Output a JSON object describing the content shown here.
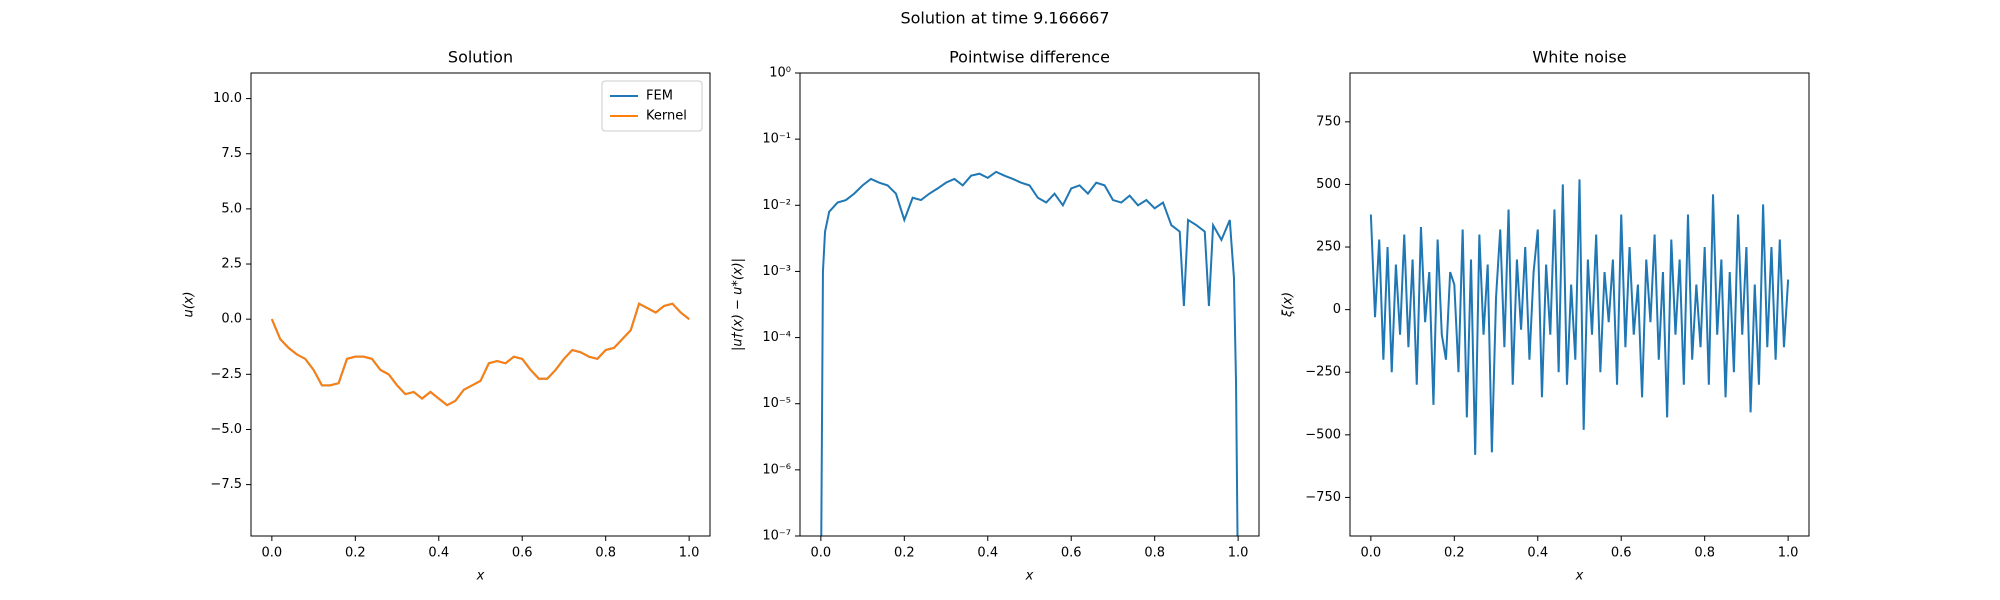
{
  "figure_title": "Solution at time 9.166667",
  "chart_data": [
    {
      "type": "line",
      "title": "Solution",
      "xlabel": "x",
      "ylabel": "u(x)",
      "legend": "upper right",
      "x": [
        0,
        0.02,
        0.04,
        0.06,
        0.08,
        0.1,
        0.12,
        0.14,
        0.16,
        0.18,
        0.2,
        0.22,
        0.24,
        0.26,
        0.28,
        0.3,
        0.32,
        0.34,
        0.36,
        0.38,
        0.4,
        0.42,
        0.44,
        0.46,
        0.48,
        0.5,
        0.52,
        0.54,
        0.56,
        0.58,
        0.6,
        0.62,
        0.64,
        0.66,
        0.68,
        0.7,
        0.72,
        0.74,
        0.76,
        0.78,
        0.8,
        0.82,
        0.84,
        0.86,
        0.88,
        0.9,
        0.92,
        0.94,
        0.96,
        0.98,
        1.0
      ],
      "series": [
        {
          "name": "FEM",
          "color": "#1f77b4",
          "values": [
            0,
            -0.9,
            -1.3,
            -1.6,
            -1.8,
            -2.3,
            -3.0,
            -3.0,
            -2.9,
            -1.8,
            -1.7,
            -1.7,
            -1.8,
            -2.3,
            -2.5,
            -3.0,
            -3.4,
            -3.3,
            -3.6,
            -3.3,
            -3.6,
            -3.9,
            -3.7,
            -3.2,
            -3.0,
            -2.8,
            -2.0,
            -1.9,
            -2.0,
            -1.7,
            -1.8,
            -2.3,
            -2.7,
            -2.7,
            -2.3,
            -1.8,
            -1.4,
            -1.5,
            -1.7,
            -1.8,
            -1.4,
            -1.3,
            -0.9,
            -0.5,
            0.7,
            0.5,
            0.3,
            0.6,
            0.7,
            0.3,
            0
          ]
        },
        {
          "name": "Kernel",
          "color": "#ff7f0e",
          "values": [
            0,
            -0.9,
            -1.3,
            -1.6,
            -1.8,
            -2.3,
            -3.0,
            -3.0,
            -2.9,
            -1.8,
            -1.7,
            -1.7,
            -1.8,
            -2.3,
            -2.5,
            -3.0,
            -3.4,
            -3.3,
            -3.6,
            -3.3,
            -3.6,
            -3.9,
            -3.7,
            -3.2,
            -3.0,
            -2.8,
            -2.0,
            -1.9,
            -2.0,
            -1.7,
            -1.8,
            -2.3,
            -2.7,
            -2.7,
            -2.3,
            -1.8,
            -1.4,
            -1.5,
            -1.7,
            -1.8,
            -1.4,
            -1.3,
            -0.9,
            -0.5,
            0.7,
            0.5,
            0.3,
            0.6,
            0.7,
            0.3,
            0
          ]
        }
      ],
      "xlim": [
        -0.05,
        1.05
      ],
      "ylim": [
        -9.83,
        11.16
      ],
      "xticks": [
        {
          "value": 0,
          "label": "0.0"
        },
        0.2,
        0.4,
        0.6,
        0.8,
        {
          "value": 1,
          "label": "1.0"
        }
      ],
      "yticks": [
        {
          "value": -7.5,
          "label": "−7.5"
        },
        {
          "value": -5,
          "label": "−5.0"
        },
        {
          "value": -2.5,
          "label": "−2.5"
        },
        {
          "value": 0,
          "label": "0.0"
        },
        2.5,
        {
          "value": 5,
          "label": "5.0"
        },
        7.5,
        {
          "value": 10,
          "label": "10.0"
        }
      ]
    },
    {
      "type": "line",
      "title": "Pointwise difference",
      "xlabel": "x",
      "ylabel": "|u†(x) − u*(x)|",
      "yscale": "log",
      "x": [
        0,
        0.005,
        0.01,
        0.02,
        0.04,
        0.06,
        0.08,
        0.1,
        0.12,
        0.14,
        0.16,
        0.18,
        0.2,
        0.22,
        0.24,
        0.26,
        0.28,
        0.3,
        0.32,
        0.34,
        0.36,
        0.38,
        0.4,
        0.42,
        0.44,
        0.46,
        0.48,
        0.5,
        0.52,
        0.54,
        0.56,
        0.58,
        0.6,
        0.62,
        0.64,
        0.66,
        0.68,
        0.7,
        0.72,
        0.74,
        0.76,
        0.78,
        0.8,
        0.82,
        0.84,
        0.86,
        0.87,
        0.88,
        0.9,
        0.92,
        0.93,
        0.94,
        0.96,
        0.98,
        0.99,
        0.995,
        1.0
      ],
      "series": [
        {
          "color": "#1f77b4",
          "values": [
            1e-08,
            0.001,
            0.004,
            0.008,
            0.011,
            0.012,
            0.015,
            0.02,
            0.025,
            0.022,
            0.02,
            0.015,
            0.006,
            0.013,
            0.012,
            0.015,
            0.018,
            0.022,
            0.025,
            0.02,
            0.028,
            0.03,
            0.026,
            0.032,
            0.028,
            0.025,
            0.022,
            0.02,
            0.013,
            0.011,
            0.015,
            0.01,
            0.018,
            0.02,
            0.015,
            0.022,
            0.02,
            0.012,
            0.011,
            0.014,
            0.01,
            0.012,
            0.009,
            0.011,
            0.005,
            0.004,
            0.0003,
            0.006,
            0.005,
            0.004,
            0.0003,
            0.005,
            0.003,
            0.006,
            0.0008,
            2e-05,
            1e-08
          ]
        }
      ],
      "xlim": [
        -0.05,
        1.05
      ],
      "ylim": [
        1e-07,
        1
      ],
      "xticks": [
        {
          "value": 0,
          "label": "0.0"
        },
        0.2,
        0.4,
        0.6,
        0.8,
        {
          "value": 1,
          "label": "1.0"
        }
      ],
      "yticks": [
        {
          "value": 1e-07,
          "label": "10⁻⁷"
        },
        {
          "value": 1e-06,
          "label": "10⁻⁶"
        },
        {
          "value": 1e-05,
          "label": "10⁻⁵"
        },
        {
          "value": 0.0001,
          "label": "10⁻⁴"
        },
        {
          "value": 0.001,
          "label": "10⁻³"
        },
        {
          "value": 0.01,
          "label": "10⁻²"
        },
        {
          "value": 0.1,
          "label": "10⁻¹"
        },
        {
          "value": 1,
          "label": "10⁰"
        }
      ]
    },
    {
      "type": "line",
      "title": "White noise",
      "xlabel": "x",
      "ylabel": "ξ(x)",
      "x": [
        0,
        0.01,
        0.02,
        0.03,
        0.04,
        0.05,
        0.06,
        0.07,
        0.08,
        0.09,
        0.1,
        0.11,
        0.12,
        0.13,
        0.14,
        0.15,
        0.16,
        0.17,
        0.18,
        0.19,
        0.2,
        0.21,
        0.22,
        0.23,
        0.24,
        0.25,
        0.26,
        0.27,
        0.28,
        0.29,
        0.3,
        0.31,
        0.32,
        0.33,
        0.34,
        0.35,
        0.36,
        0.37,
        0.38,
        0.39,
        0.4,
        0.41,
        0.42,
        0.43,
        0.44,
        0.45,
        0.46,
        0.47,
        0.48,
        0.49,
        0.5,
        0.51,
        0.52,
        0.53,
        0.54,
        0.55,
        0.56,
        0.57,
        0.58,
        0.59,
        0.6,
        0.61,
        0.62,
        0.63,
        0.64,
        0.65,
        0.66,
        0.67,
        0.68,
        0.69,
        0.7,
        0.71,
        0.72,
        0.73,
        0.74,
        0.75,
        0.76,
        0.77,
        0.78,
        0.79,
        0.8,
        0.81,
        0.82,
        0.83,
        0.84,
        0.85,
        0.86,
        0.87,
        0.88,
        0.89,
        0.9,
        0.91,
        0.92,
        0.93,
        0.94,
        0.95,
        0.96,
        0.97,
        0.98,
        0.99,
        1.0
      ],
      "series": [
        {
          "color": "#1f77b4",
          "values": [
            380,
            -30,
            280,
            -200,
            250,
            -250,
            180,
            -100,
            300,
            -150,
            200,
            -300,
            330,
            -50,
            150,
            -380,
            280,
            -100,
            -200,
            150,
            100,
            -250,
            320,
            -430,
            200,
            -580,
            300,
            -100,
            180,
            -570,
            50,
            320,
            -150,
            400,
            -300,
            200,
            -80,
            250,
            -200,
            150,
            320,
            -350,
            180,
            -100,
            400,
            -250,
            500,
            -300,
            100,
            -200,
            520,
            -480,
            200,
            -100,
            300,
            -250,
            150,
            -50,
            200,
            -300,
            380,
            -150,
            250,
            -100,
            100,
            -350,
            200,
            -50,
            300,
            -200,
            150,
            -430,
            280,
            -100,
            200,
            -300,
            380,
            -200,
            100,
            -150,
            250,
            -300,
            460,
            -100,
            200,
            -350,
            150,
            -250,
            380,
            -100,
            250,
            -410,
            100,
            -300,
            420,
            -150,
            250,
            -200,
            280,
            -150,
            120
          ]
        }
      ],
      "xlim": [
        -0.05,
        1.05
      ],
      "ylim": [
        -904,
        945
      ],
      "xticks": [
        {
          "value": 0,
          "label": "0.0"
        },
        0.2,
        0.4,
        0.6,
        0.8,
        {
          "value": 1,
          "label": "1.0"
        }
      ],
      "yticks": [
        {
          "value": -750,
          "label": "−750"
        },
        {
          "value": -500,
          "label": "−500"
        },
        {
          "value": -250,
          "label": "−250"
        },
        0,
        250,
        500,
        750
      ]
    }
  ]
}
